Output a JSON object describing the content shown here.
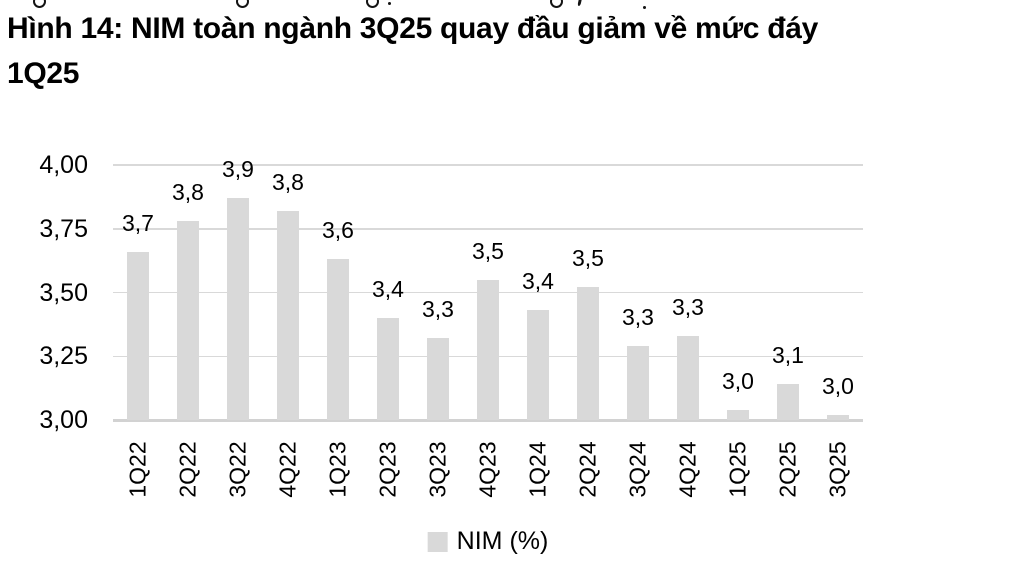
{
  "title": {
    "line1": "Hình 14: NIM toàn ngành 3Q25 quay đầu giảm về mức đáy",
    "line2": "1Q25"
  },
  "colors": {
    "bar": "#d9d9d9",
    "gridline": "#d9d9d9",
    "axis_line": "#d2d2d2",
    "text": "#000000"
  },
  "chart_data": {
    "type": "bar",
    "title": "Hình 14: NIM toàn ngành 3Q25 quay đầu giảm về mức đáy 1Q25",
    "categories": [
      "1Q22",
      "2Q22",
      "3Q22",
      "4Q22",
      "1Q23",
      "2Q23",
      "3Q23",
      "4Q23",
      "1Q24",
      "2Q24",
      "3Q24",
      "4Q24",
      "1Q25",
      "2Q25",
      "3Q25"
    ],
    "series": [
      {
        "name": "NIM (%)",
        "values": [
          3.66,
          3.78,
          3.87,
          3.82,
          3.63,
          3.4,
          3.32,
          3.55,
          3.43,
          3.52,
          3.29,
          3.33,
          3.04,
          3.14,
          3.02
        ],
        "data_labels": [
          "3,7",
          "3,8",
          "3,9",
          "3,8",
          "3,6",
          "3,4",
          "3,3",
          "3,5",
          "3,4",
          "3,5",
          "3,3",
          "3,3",
          "3,0",
          "3,1",
          "3,0"
        ]
      }
    ],
    "legend": [
      "NIM (%)"
    ],
    "legend_position": "bottom",
    "xlabel": "",
    "ylabel": "",
    "ylim": [
      3.0,
      4.0
    ],
    "yticks": {
      "values": [
        3.0,
        3.25,
        3.5,
        3.75,
        4.0
      ],
      "labels": [
        "3,00",
        "3,25",
        "3,50",
        "3,75",
        "4,00"
      ]
    },
    "grid": true,
    "decimal_separator": ","
  }
}
